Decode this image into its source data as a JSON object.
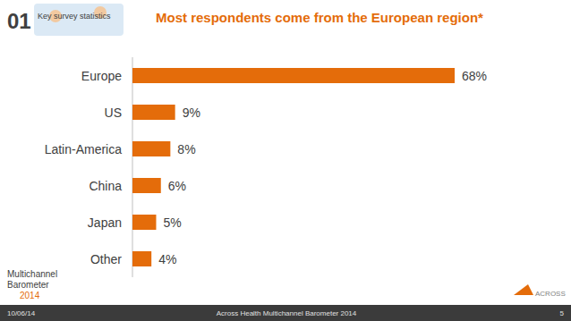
{
  "chart_data": {
    "type": "bar",
    "title": "Most respondents come from the European region*",
    "orientation": "horizontal",
    "categories": [
      "Europe",
      "US",
      "Latin-America",
      "China",
      "Japan",
      "Other"
    ],
    "values": [
      68,
      9,
      8,
      6,
      5,
      4
    ],
    "value_labels": [
      "68%",
      "9%",
      "8%",
      "6%",
      "5%",
      "4%"
    ],
    "data_labels": true,
    "color": "#e46c0a",
    "ylim": [
      0,
      68
    ],
    "grid": false
  },
  "slide": {
    "section_number": "01",
    "section_name": "Key survey statistics",
    "logo_lines": [
      "Multichannel",
      "Barometer",
      "2014"
    ],
    "brand": "ACROSS",
    "footer_date": "10/06/14",
    "footer_title": "Across Health Multichannel Barometer 2014",
    "page_number": "5"
  }
}
